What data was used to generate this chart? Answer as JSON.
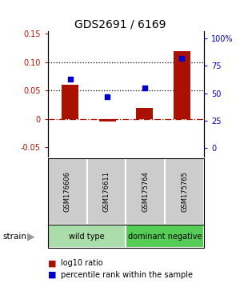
{
  "title": "GDS2691 / 6169",
  "samples": [
    "GSM176606",
    "GSM176611",
    "GSM175764",
    "GSM175765"
  ],
  "log10_ratio": [
    0.06,
    -0.005,
    0.02,
    0.12
  ],
  "percentile_rank": [
    63,
    47,
    55,
    82
  ],
  "groups": [
    {
      "label": "wild type",
      "samples": [
        0,
        1
      ],
      "color": "#aaddaa"
    },
    {
      "label": "dominant negative",
      "samples": [
        2,
        3
      ],
      "color": "#55cc55"
    }
  ],
  "bar_color": "#aa1100",
  "dot_color": "#0000cc",
  "ylim_left": [
    -0.07,
    0.155
  ],
  "ylim_right": [
    -9.33,
    106.67
  ],
  "yticks_left": [
    -0.05,
    0.0,
    0.05,
    0.1,
    0.15
  ],
  "yticks_right": [
    0,
    25,
    50,
    75,
    100
  ],
  "ytick_labels_left": [
    "-0.05",
    "0",
    "0.05",
    "0.10",
    "0.15"
  ],
  "ytick_labels_right": [
    "0",
    "25",
    "50",
    "75",
    "100%"
  ],
  "hlines": [
    0.05,
    0.1
  ],
  "background_color": "#ffffff",
  "legend_items": [
    {
      "color": "#aa1100",
      "label": "log10 ratio"
    },
    {
      "color": "#0000cc",
      "label": "percentile rank within the sample"
    }
  ]
}
